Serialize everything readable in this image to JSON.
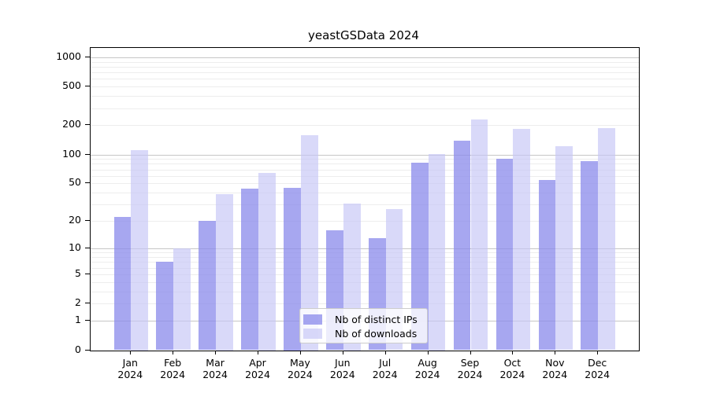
{
  "title": "yeastGSData 2024",
  "chart_data": {
    "type": "bar",
    "title": "yeastGSData 2024",
    "categories": [
      "Jan 2024",
      "Feb 2024",
      "Mar 2024",
      "Apr 2024",
      "May 2024",
      "Jun 2024",
      "Jul 2024",
      "Aug 2024",
      "Sep 2024",
      "Oct 2024",
      "Nov 2024",
      "Dec 2024"
    ],
    "series": [
      {
        "name": "Nb of distinct IPs",
        "color": "#8a8aeb",
        "alpha": 0.75,
        "values": [
          22,
          7,
          20,
          44,
          45,
          16,
          13,
          82,
          139,
          90,
          54,
          85
        ]
      },
      {
        "name": "Nb of downloads",
        "color": "#c5c5f6",
        "alpha": 0.65,
        "values": [
          112,
          10,
          39,
          65,
          158,
          31,
          27,
          101,
          230,
          185,
          122,
          188
        ]
      }
    ],
    "yscale": "log1p",
    "ylim": [
      0,
      1256
    ],
    "yticks": [
      0,
      1,
      2,
      5,
      10,
      20,
      50,
      100,
      200,
      500,
      1000
    ],
    "ytick_labels": [
      "0",
      "1",
      "2",
      "5",
      "10",
      "20",
      "50",
      "100",
      "200",
      "500",
      "1000"
    ],
    "major_gridlines": [
      1,
      10,
      100,
      1000
    ],
    "minor_gridlines": [
      2,
      3,
      4,
      5,
      6,
      7,
      8,
      9,
      20,
      30,
      40,
      50,
      60,
      70,
      80,
      90,
      200,
      300,
      400,
      500,
      600,
      700,
      800,
      900
    ],
    "grid": "on",
    "legend_position": "lower center",
    "xlabel": "",
    "ylabel": ""
  },
  "colors": {
    "major_grid": "#c6c6c6",
    "minor_grid": "#ededed",
    "spine": "#000000",
    "background": "#ffffff",
    "text": "#000000"
  }
}
